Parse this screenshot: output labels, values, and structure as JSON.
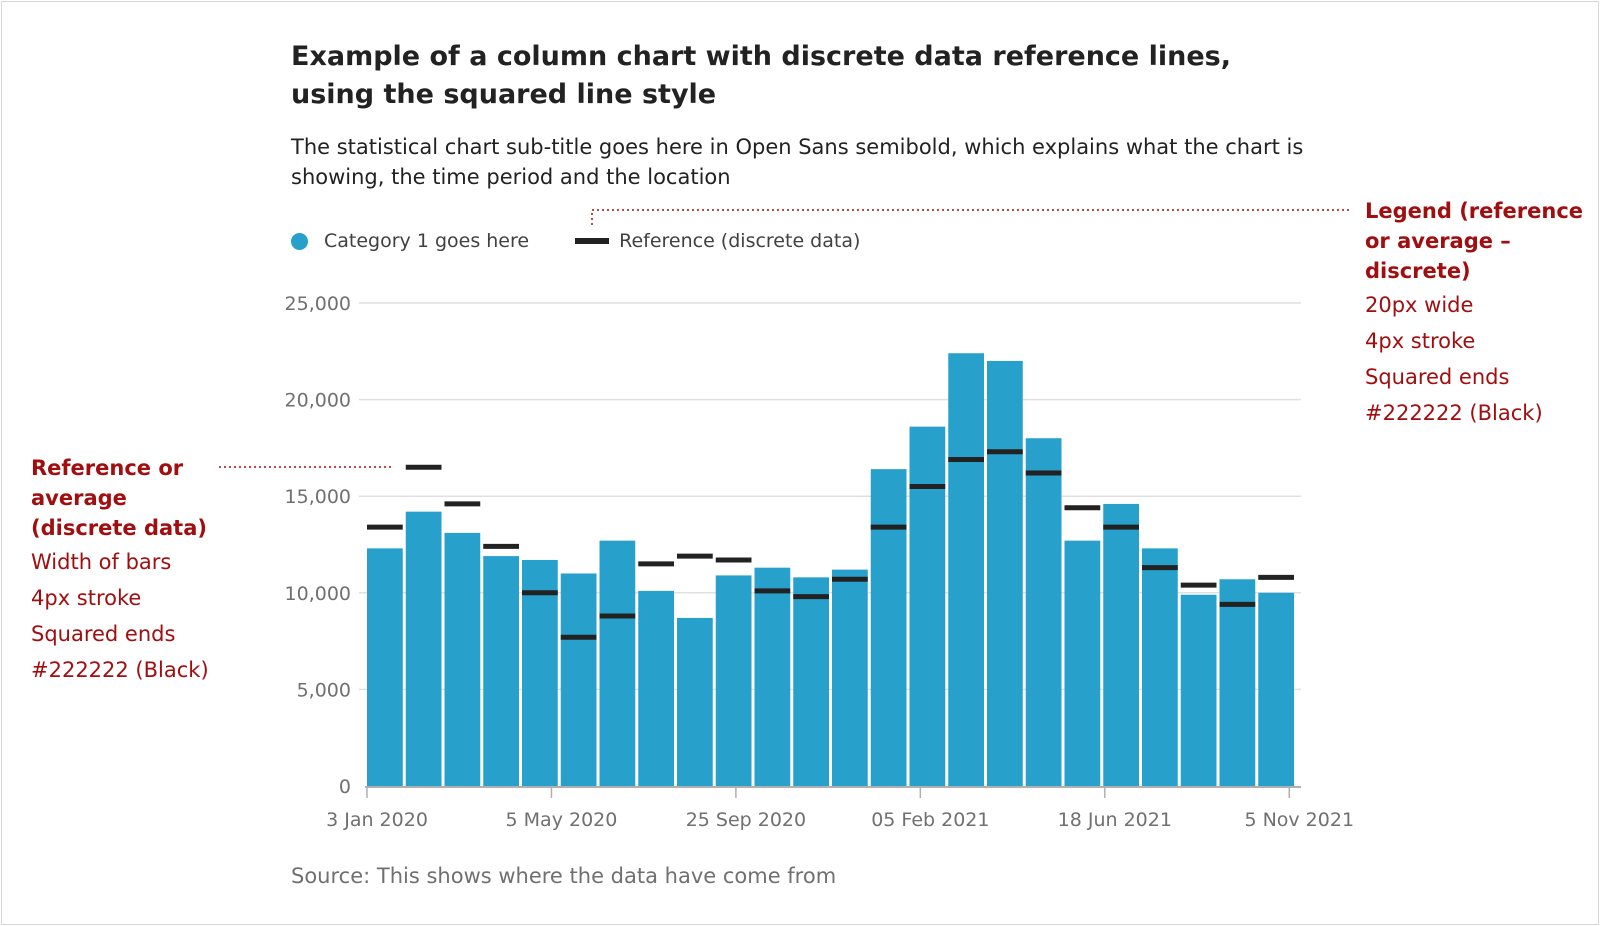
{
  "title": "Example of a column chart with discrete data reference lines, using the squared line style",
  "subtitle": "The statistical chart sub-title goes here in Open Sans semibold, which explains what the chart is showing, the time period and the location",
  "source": "Source: This shows where the data have come from",
  "annotations": {
    "left": {
      "heading": "Reference or average (discrete data)",
      "lines": [
        "Width of bars",
        "4px stroke",
        "Squared ends",
        "#222222 (Black)"
      ]
    },
    "right": {
      "heading": "Legend (reference or average – discrete)",
      "lines": [
        "20px wide",
        "4px stroke",
        "Squared ends",
        "#222222 (Black)"
      ]
    }
  },
  "colors": {
    "bar": "#27a0cc",
    "reference": "#222222",
    "annotation": "#a00e10",
    "grid": "#e0e0e0"
  },
  "chart_data": {
    "type": "bar",
    "legend": [
      "Category 1 goes here",
      "Reference (discrete data)"
    ],
    "legend_position": "top-left",
    "x_tick_labels": [
      "3 Jan 2020",
      "5 May 2020",
      "25 Sep 2020",
      "05 Feb 2021",
      "18 Jun 2021",
      "5 Nov 2021"
    ],
    "y_ticks": [
      0,
      5000,
      10000,
      15000,
      20000,
      25000
    ],
    "y_tick_labels": [
      "0",
      "5,000",
      "10,000",
      "15,000",
      "20,000",
      "25,000"
    ],
    "ylim": [
      0,
      25000
    ],
    "grid": true,
    "series": [
      {
        "name": "Category 1 goes here",
        "values": [
          12300,
          14200,
          13100,
          11900,
          11700,
          11000,
          12700,
          10100,
          8700,
          10900,
          11300,
          10800,
          11200,
          16400,
          18600,
          22400,
          22000,
          18000,
          12700,
          14600,
          12300,
          9900,
          10700,
          10000
        ]
      },
      {
        "name": "Reference (discrete data)",
        "values": [
          13400,
          16500,
          14600,
          12400,
          10000,
          7700,
          8800,
          11500,
          11900,
          11700,
          10100,
          9800,
          10700,
          13400,
          15500,
          16900,
          17300,
          16200,
          14400,
          13400,
          11300,
          10400,
          9400,
          10800
        ]
      }
    ]
  }
}
